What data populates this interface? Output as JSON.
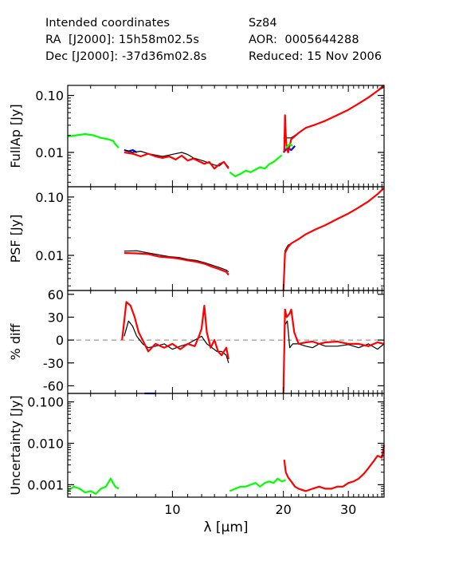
{
  "header": {
    "line1_left": "Intended coordinates",
    "line1_right": "Sz84",
    "line2_left": "RA  [J2000]: 15h58m02.5s",
    "line2_right": "AOR:  0005644288",
    "line3_left": "Dec [J2000]: -37d36m02.8s",
    "line3_right": "Reduced: 15 Nov 2006"
  },
  "colors": {
    "black": "#000000",
    "red": "#ff0000",
    "green": "#00ff00",
    "blue": "#0000ff",
    "zero_line": "#999999"
  },
  "chart_data": [
    {
      "type": "line",
      "panel": "fullap",
      "ylabel": "FullAp [Jy]",
      "yscale": "log",
      "ylim": [
        0.0025,
        0.15
      ],
      "yticks": [
        {
          "v": 0.1,
          "label": "0.10"
        },
        {
          "v": 0.01,
          "label": "0.01"
        }
      ],
      "xlim": [
        5.2,
        37.5
      ],
      "xscale": "log",
      "series": [
        {
          "color": "green",
          "x": [
            5.2,
            5.5,
            5.8,
            6.1,
            6.4,
            6.7,
            6.9,
            7.0,
            7.15
          ],
          "y": [
            0.019,
            0.02,
            0.021,
            0.02,
            0.018,
            0.017,
            0.016,
            0.014,
            0.012
          ]
        },
        {
          "color": "blue",
          "x": [
            7.4,
            7.6,
            7.8,
            8.0
          ],
          "y": [
            0.011,
            0.0105,
            0.011,
            0.01
          ]
        },
        {
          "color": "black",
          "x": [
            7.4,
            7.8,
            8.2,
            8.6,
            9.0,
            9.4,
            9.8,
            10.2,
            10.6,
            11.0,
            11.4,
            11.8,
            12.2,
            12.6,
            13.0,
            13.4,
            13.8,
            14.2
          ],
          "y": [
            0.011,
            0.01,
            0.0105,
            0.0095,
            0.009,
            0.0085,
            0.009,
            0.0095,
            0.01,
            0.0092,
            0.008,
            0.0075,
            0.007,
            0.0065,
            0.006,
            0.0058,
            0.0068,
            0.0055
          ]
        },
        {
          "color": "red",
          "x": [
            7.4,
            7.8,
            8.2,
            8.6,
            9.0,
            9.4,
            9.8,
            10.2,
            10.6,
            11.0,
            11.4,
            11.8,
            12.2,
            12.6,
            13.0,
            13.4,
            13.8,
            14.2
          ],
          "y": [
            0.01,
            0.0095,
            0.0085,
            0.0095,
            0.0085,
            0.008,
            0.0085,
            0.0075,
            0.0088,
            0.0072,
            0.0078,
            0.007,
            0.0063,
            0.0068,
            0.0052,
            0.0062,
            0.0068,
            0.0052
          ]
        },
        {
          "color": "green",
          "x": [
            14.3,
            14.8,
            15.3,
            15.8,
            16.3,
            16.8,
            17.3,
            17.8,
            18.3,
            18.8,
            19.3,
            19.8
          ],
          "y": [
            0.0045,
            0.0038,
            0.0042,
            0.0048,
            0.0045,
            0.005,
            0.0055,
            0.0052,
            0.0062,
            0.0068,
            0.0078,
            0.009
          ]
        },
        {
          "color": "blue",
          "x": [
            20.0,
            20.5,
            21.0,
            21.5
          ],
          "y": [
            0.01,
            0.012,
            0.011,
            0.013
          ]
        },
        {
          "color": "black",
          "x": [
            20.0,
            21.0,
            22.0,
            23.0,
            24.5,
            26.0,
            28.0,
            30.0,
            32.0,
            34.0,
            36.0,
            37.5
          ],
          "y": [
            0.018,
            0.018,
            0.022,
            0.027,
            0.031,
            0.036,
            0.045,
            0.056,
            0.072,
            0.092,
            0.12,
            0.14
          ]
        },
        {
          "color": "red",
          "x": [
            20.1,
            20.2,
            20.3,
            20.4,
            20.6,
            21.0,
            22.0,
            23.0,
            24.5,
            26.0,
            28.0,
            30.0,
            32.0,
            34.0,
            36.0,
            37.5
          ],
          "y": [
            0.01,
            0.045,
            0.02,
            0.012,
            0.01,
            0.017,
            0.022,
            0.027,
            0.031,
            0.036,
            0.045,
            0.056,
            0.072,
            0.092,
            0.12,
            0.15
          ]
        },
        {
          "color": "green",
          "x": [
            20.3,
            20.8,
            21.2
          ],
          "y": [
            0.012,
            0.014,
            0.013
          ]
        }
      ]
    },
    {
      "type": "line",
      "panel": "psf",
      "ylabel": "PSF [Jy]",
      "yscale": "log",
      "ylim": [
        0.0025,
        0.15
      ],
      "yticks": [
        {
          "v": 0.1,
          "label": "0.10"
        },
        {
          "v": 0.01,
          "label": "0.01"
        }
      ],
      "xlim": [
        5.2,
        37.5
      ],
      "xscale": "log",
      "series": [
        {
          "color": "black",
          "x": [
            7.4,
            8.0,
            8.6,
            9.2,
            9.8,
            10.4,
            11.0,
            11.6,
            12.2,
            12.8,
            13.4,
            14.0,
            14.2
          ],
          "y": [
            0.0118,
            0.012,
            0.011,
            0.0102,
            0.0095,
            0.0092,
            0.0085,
            0.0082,
            0.0075,
            0.0068,
            0.0062,
            0.0056,
            0.0052
          ]
        },
        {
          "color": "red",
          "x": [
            7.4,
            8.0,
            8.6,
            9.2,
            9.8,
            10.4,
            11.0,
            11.6,
            12.2,
            12.8,
            13.4,
            14.0,
            14.2
          ],
          "y": [
            0.011,
            0.0108,
            0.0105,
            0.0095,
            0.0092,
            0.0088,
            0.0082,
            0.0078,
            0.0072,
            0.0064,
            0.0058,
            0.0052,
            0.0046
          ]
        },
        {
          "color": "black",
          "x": [
            20.0,
            20.2,
            20.6,
            21.0,
            22.0,
            23.0,
            24.5,
            26.0,
            28.0,
            30.0,
            32.0,
            34.0,
            36.0,
            37.5
          ],
          "y": [
            0.0025,
            0.012,
            0.015,
            0.016,
            0.019,
            0.023,
            0.028,
            0.033,
            0.042,
            0.052,
            0.066,
            0.084,
            0.112,
            0.14
          ]
        },
        {
          "color": "red",
          "x": [
            20.0,
            20.2,
            20.6,
            21.0,
            22.0,
            23.0,
            24.5,
            26.0,
            28.0,
            30.0,
            32.0,
            34.0,
            36.0,
            37.5
          ],
          "y": [
            0.0025,
            0.011,
            0.014,
            0.016,
            0.019,
            0.023,
            0.028,
            0.033,
            0.042,
            0.052,
            0.066,
            0.084,
            0.112,
            0.142
          ]
        }
      ]
    },
    {
      "type": "line",
      "panel": "pctdiff",
      "ylabel": "% diff",
      "yscale": "linear",
      "ylim": [
        -70,
        65
      ],
      "yticks": [
        {
          "v": 60,
          "label": "60"
        },
        {
          "v": 30,
          "label": "30"
        },
        {
          "v": 0,
          "label": "0"
        },
        {
          "v": -30,
          "label": "-30"
        },
        {
          "v": -60,
          "label": "-60"
        }
      ],
      "xlim": [
        5.2,
        37.5
      ],
      "xscale": "log",
      "zero_line": true,
      "series": [
        {
          "color": "black",
          "x": [
            7.4,
            7.6,
            7.8,
            8.0,
            8.3,
            8.6,
            9.0,
            9.5,
            10.0,
            10.5,
            11.0,
            11.5,
            12.0,
            12.4,
            12.8,
            13.2,
            13.6,
            14.0,
            14.2
          ],
          "y": [
            5,
            25,
            18,
            5,
            -5,
            -10,
            -8,
            -5,
            -12,
            -8,
            -5,
            0,
            5,
            -5,
            -10,
            -15,
            -15,
            -20,
            -30
          ]
        },
        {
          "color": "red",
          "x": [
            7.3,
            7.5,
            7.7,
            7.9,
            8.1,
            8.3,
            8.6,
            9.0,
            9.5,
            10.0,
            10.5,
            11.0,
            11.5,
            11.8,
            12.0,
            12.2,
            12.4,
            12.7,
            13.0,
            13.3,
            13.6,
            14.0,
            14.2
          ],
          "y": [
            0,
            50,
            45,
            30,
            10,
            0,
            -15,
            -5,
            -10,
            -5,
            -12,
            -5,
            -8,
            5,
            15,
            45,
            10,
            -10,
            0,
            -15,
            -20,
            -10,
            -25
          ]
        },
        {
          "color": "black",
          "x": [
            20.0,
            20.2,
            20.5,
            20.8,
            21.2,
            22.0,
            23.0,
            24.0,
            25.0,
            26.0,
            28.0,
            30.0,
            32.0,
            34.0,
            36.0,
            37.5
          ],
          "y": [
            -70,
            20,
            25,
            -10,
            -5,
            -5,
            -8,
            -10,
            -5,
            -8,
            -8,
            -6,
            -10,
            -5,
            -12,
            -5
          ]
        },
        {
          "color": "red",
          "x": [
            20.0,
            20.2,
            20.4,
            20.8,
            21.0,
            21.4,
            22.0,
            23.0,
            24.0,
            25.0,
            26.0,
            28.0,
            30.0,
            32.0,
            34.0,
            36.0,
            37.5
          ],
          "y": [
            -70,
            40,
            30,
            35,
            40,
            10,
            -5,
            -3,
            -2,
            -5,
            -3,
            -2,
            -5,
            -5,
            -8,
            -3,
            -5
          ]
        },
        {
          "color": "blue",
          "x": [
            8.4,
            9.0
          ],
          "y": [
            -70,
            -70
          ]
        }
      ]
    },
    {
      "type": "line",
      "panel": "uncertainty",
      "ylabel": "Uncertainty [Jy]",
      "yscale": "log",
      "ylim": [
        0.0005,
        0.16
      ],
      "yticks": [
        {
          "v": 0.1,
          "label": "0.100"
        },
        {
          "v": 0.01,
          "label": "0.010"
        },
        {
          "v": 0.001,
          "label": "0.001"
        }
      ],
      "xlim": [
        5.2,
        37.5
      ],
      "xscale": "log",
      "xlabel": "λ [μm]",
      "xticks": [
        {
          "v": 10,
          "label": "10"
        },
        {
          "v": 20,
          "label": "20"
        },
        {
          "v": 30,
          "label": "30"
        }
      ],
      "series": [
        {
          "color": "green",
          "x": [
            5.2,
            5.4,
            5.6,
            5.8,
            6.0,
            6.2,
            6.4,
            6.6,
            6.8,
            7.0,
            7.15
          ],
          "y": [
            0.0007,
            0.0009,
            0.0008,
            0.00065,
            0.0007,
            0.0006,
            0.0008,
            0.0009,
            0.0014,
            0.0009,
            0.0008
          ]
        },
        {
          "color": "green",
          "x": [
            14.3,
            14.8,
            15.3,
            15.8,
            16.3,
            16.8,
            17.3,
            17.8,
            18.3,
            18.8,
            19.3,
            19.8,
            20.3
          ],
          "y": [
            0.0007,
            0.0008,
            0.0009,
            0.0009,
            0.001,
            0.0011,
            0.0009,
            0.0011,
            0.0012,
            0.0011,
            0.0014,
            0.0012,
            0.0013
          ]
        },
        {
          "color": "red",
          "x": [
            20.1,
            20.3,
            20.6,
            21.0,
            21.5,
            22.0,
            23.0,
            24.0,
            25.0,
            26.0,
            27.0,
            28.0,
            29.0,
            30.0,
            31.0,
            32.0,
            33.0,
            34.0,
            35.0,
            36.0,
            37.0,
            37.5
          ],
          "y": [
            0.004,
            0.002,
            0.0015,
            0.0012,
            0.0009,
            0.0008,
            0.0007,
            0.0008,
            0.0009,
            0.0008,
            0.0008,
            0.0009,
            0.0009,
            0.0011,
            0.0012,
            0.0014,
            0.0018,
            0.0025,
            0.0035,
            0.005,
            0.0045,
            0.009
          ]
        }
      ]
    }
  ]
}
